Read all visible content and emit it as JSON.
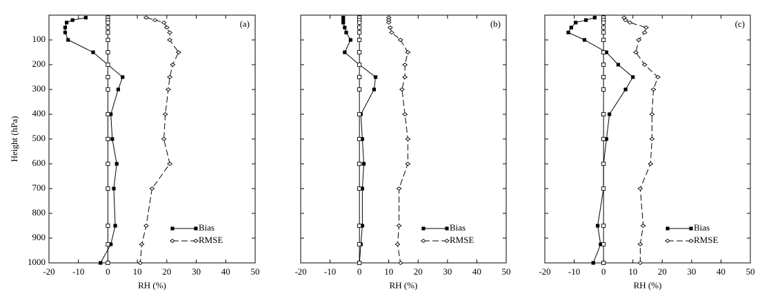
{
  "chart_data": [
    {
      "type": "line",
      "panel_label": "(a)",
      "xlabel": "RH (%)",
      "ylabel": "Height (hPa)",
      "ytick_labels": true,
      "xlim": [
        -20,
        50
      ],
      "xticks": [
        -20,
        -10,
        0,
        10,
        20,
        30,
        40,
        50
      ],
      "ylim": [
        1000,
        0
      ],
      "yticks": [
        100,
        200,
        300,
        400,
        500,
        600,
        700,
        800,
        900,
        1000
      ],
      "legend": "lower right",
      "y": [
        10,
        20,
        30,
        50,
        70,
        100,
        150,
        200,
        250,
        300,
        400,
        500,
        600,
        700,
        850,
        925,
        1000
      ],
      "series": [
        {
          "name": "Bias",
          "color": "#000000",
          "line": "solid",
          "marker": "filled-square",
          "values": [
            -7.5,
            -12,
            -14,
            -14.5,
            -14.5,
            -13.5,
            -5,
            0,
            5,
            3.5,
            1,
            1.5,
            3,
            2,
            2.5,
            1,
            -2.5
          ]
        },
        {
          "name": "RMSE",
          "color": "#000000",
          "line": "dashed",
          "marker": "open-diamond",
          "values": [
            13,
            16,
            19,
            20,
            21,
            21,
            24,
            22,
            21,
            20.5,
            19.5,
            19,
            21,
            15,
            13,
            11.5,
            11
          ]
        },
        {
          "color": "#000000",
          "line": "solid",
          "marker": "open-square",
          "values": [
            0,
            0,
            0,
            0,
            0,
            0,
            0,
            0,
            0,
            0,
            0,
            0,
            0,
            0,
            0,
            0,
            0
          ]
        }
      ]
    },
    {
      "type": "line",
      "panel_label": "(b)",
      "xlabel": "RH (%)",
      "ytick_labels": false,
      "xlim": [
        -20,
        50
      ],
      "xticks": [
        -20,
        -10,
        0,
        10,
        20,
        30,
        40,
        50
      ],
      "ylim": [
        1000,
        0
      ],
      "yticks": [
        100,
        200,
        300,
        400,
        500,
        600,
        700,
        800,
        900,
        1000
      ],
      "legend": "lower right",
      "y": [
        10,
        20,
        30,
        50,
        70,
        100,
        150,
        200,
        250,
        300,
        400,
        500,
        600,
        700,
        850,
        925,
        1000
      ],
      "series": [
        {
          "name": "Bias",
          "color": "#000000",
          "line": "solid",
          "marker": "filled-square",
          "values": [
            -5.5,
            -5.5,
            -5.5,
            -5,
            -4.5,
            -3,
            -5,
            0,
            5.5,
            5,
            0.5,
            1,
            1.5,
            1,
            1,
            0.5,
            0
          ]
        },
        {
          "name": "RMSE",
          "color": "#000000",
          "line": "dashed",
          "marker": "open-diamond",
          "values": [
            10,
            10,
            10,
            10.5,
            11,
            14,
            16.5,
            15.5,
            15.5,
            14.5,
            15.5,
            16.5,
            16.5,
            13.5,
            13.5,
            13,
            14
          ]
        },
        {
          "color": "#000000",
          "line": "solid",
          "marker": "open-square",
          "values": [
            0,
            0,
            0,
            0,
            0,
            0,
            0,
            0,
            0,
            0,
            0,
            0,
            0,
            0,
            0,
            0,
            0
          ]
        }
      ]
    },
    {
      "type": "line",
      "panel_label": "(c)",
      "xlabel": "RH (%)",
      "ytick_labels": false,
      "xlim": [
        -20,
        50
      ],
      "xticks": [
        -20,
        -10,
        0,
        10,
        20,
        30,
        40,
        50
      ],
      "ylim": [
        1000,
        0
      ],
      "yticks": [
        100,
        200,
        300,
        400,
        500,
        600,
        700,
        800,
        900,
        1000
      ],
      "legend": "lower right",
      "y": [
        10,
        20,
        30,
        50,
        70,
        100,
        150,
        200,
        250,
        300,
        400,
        500,
        600,
        700,
        850,
        925,
        1000
      ],
      "series": [
        {
          "name": "Bias",
          "color": "#000000",
          "line": "solid",
          "marker": "filled-square",
          "values": [
            -3,
            -6,
            -9.5,
            -11,
            -12,
            -6.5,
            1,
            5,
            10,
            7.5,
            2,
            1,
            0,
            0,
            -2,
            -1,
            -3.5
          ]
        },
        {
          "name": "RMSE",
          "color": "#000000",
          "line": "dashed",
          "marker": "open-diamond",
          "values": [
            7,
            7.5,
            9,
            14.5,
            14,
            12,
            11,
            14,
            18.5,
            17,
            16.5,
            16.5,
            16,
            12.5,
            13.5,
            12.5,
            12.5
          ]
        },
        {
          "color": "#000000",
          "line": "solid",
          "marker": "open-square",
          "values": [
            0,
            0,
            0,
            0,
            0,
            0,
            0,
            0,
            0,
            0,
            0,
            0,
            0,
            0,
            0,
            0,
            0
          ]
        }
      ]
    }
  ]
}
